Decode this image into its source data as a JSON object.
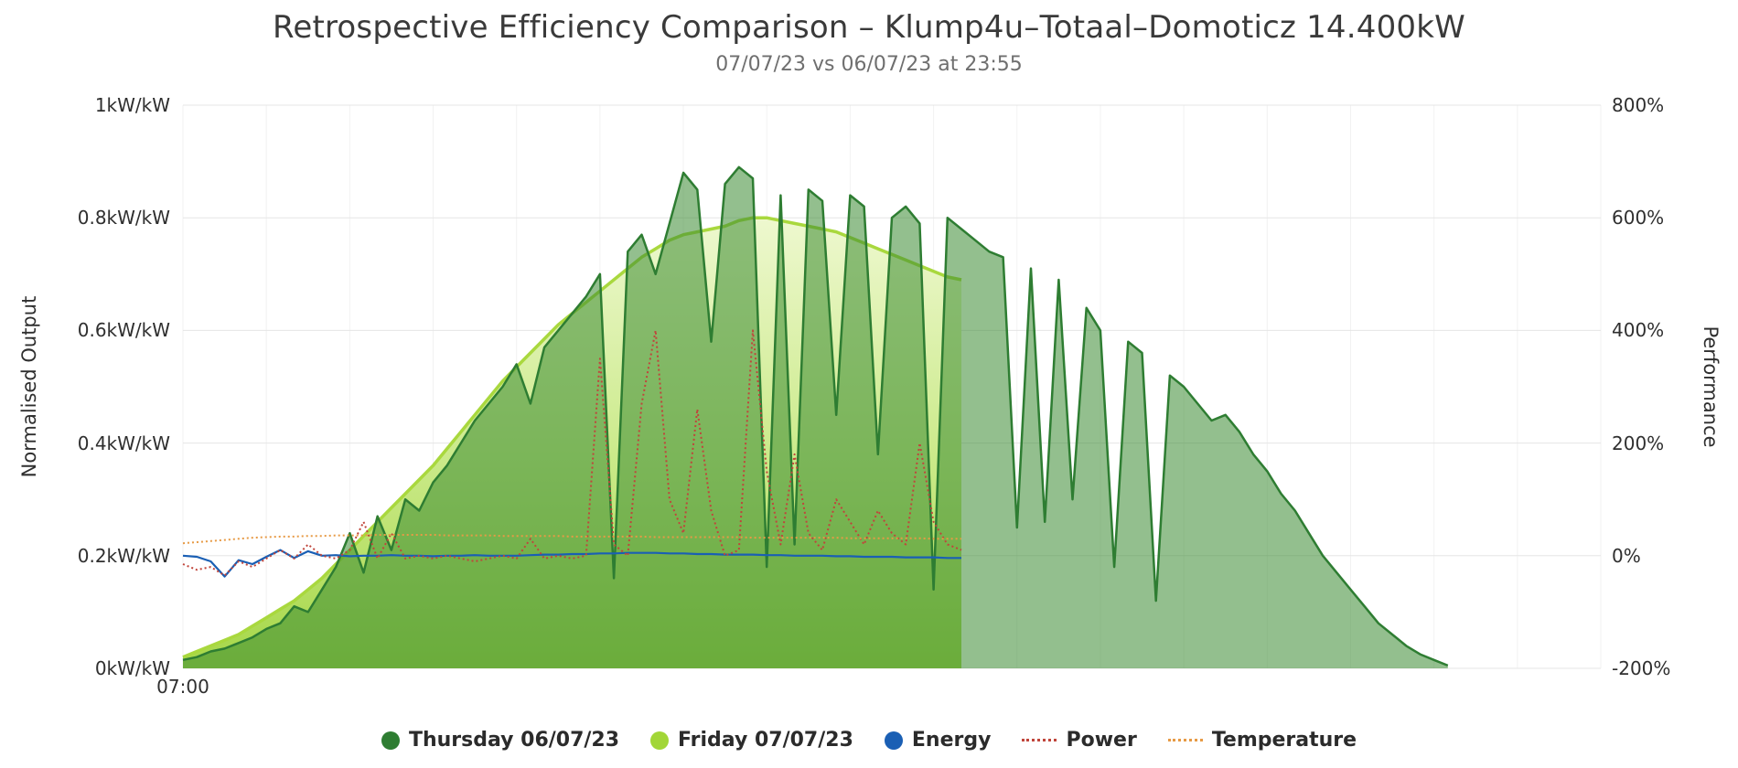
{
  "title": "Retrospective Efficiency Comparison – Klump4u–Totaal–Domoticz 14.400kW",
  "subtitle": "07/07/23 vs 06/07/23 at 23:55",
  "axes": {
    "left_label": "Normalised Output",
    "right_label": "Performance",
    "left_ticks": [
      "0kW/kW",
      "0.2kW/kW",
      "0.4kW/kW",
      "0.6kW/kW",
      "0.8kW/kW",
      "1kW/kW"
    ],
    "right_ticks": [
      "-200%",
      "0%",
      "200%",
      "400%",
      "600%",
      "800%"
    ],
    "x_ticks": [
      "07:00"
    ]
  },
  "legend": {
    "items": [
      {
        "label": "Thursday 06/07/23",
        "swatch": "circle",
        "color": "#2e7d32"
      },
      {
        "label": "Friday 07/07/23",
        "swatch": "circle",
        "color": "#a2d637"
      },
      {
        "label": "Energy",
        "swatch": "circle",
        "color": "#1a5fb4"
      },
      {
        "label": "Power",
        "swatch": "dotted-line",
        "color": "#c0453b"
      },
      {
        "label": "Temperature",
        "swatch": "dotted-line",
        "color": "#e79a45"
      }
    ]
  },
  "chart_data": {
    "type": "area",
    "title": "Retrospective Efficiency Comparison – Klump4u–Totaal–Domoticz 14.400kW",
    "subtitle": "07/07/23 vs 06/07/23 at 23:55",
    "x_range_minutes": [
      0,
      1020
    ],
    "x_start_time": "07:00",
    "left_axis": {
      "label": "Normalised Output",
      "unit": "kW/kW",
      "min": 0,
      "max": 1,
      "tick_step": 0.2
    },
    "right_axis": {
      "label": "Performance",
      "unit": "%",
      "min": -200,
      "max": 800,
      "tick_step": 200
    },
    "grid": {
      "horizontal": true,
      "vertical": true,
      "vertical_step_minutes": 60
    },
    "legend_position": "bottom",
    "series": [
      {
        "name": "Thursday 06/07/23",
        "type": "area",
        "color": "#2e7d32",
        "fill": "rgba(58,138,50,0.55)",
        "x_start_min": 0,
        "x_step_min": 10,
        "values": [
          0.015,
          0.02,
          0.03,
          0.035,
          0.045,
          0.055,
          0.07,
          0.08,
          0.11,
          0.1,
          0.14,
          0.18,
          0.24,
          0.17,
          0.27,
          0.21,
          0.3,
          0.28,
          0.33,
          0.36,
          0.4,
          0.44,
          0.47,
          0.5,
          0.54,
          0.47,
          0.57,
          0.6,
          0.63,
          0.66,
          0.7,
          0.16,
          0.74,
          0.77,
          0.7,
          0.79,
          0.88,
          0.85,
          0.58,
          0.86,
          0.89,
          0.87,
          0.18,
          0.84,
          0.22,
          0.85,
          0.83,
          0.45,
          0.84,
          0.82,
          0.38,
          0.8,
          0.82,
          0.79,
          0.14,
          0.8,
          0.78,
          0.76,
          0.74,
          0.73,
          0.25,
          0.71,
          0.26,
          0.69,
          0.3,
          0.64,
          0.6,
          0.18,
          0.58,
          0.56,
          0.12,
          0.52,
          0.5,
          0.47,
          0.44,
          0.45,
          0.42,
          0.38,
          0.35,
          0.31,
          0.28,
          0.24,
          0.2,
          0.17,
          0.14,
          0.11,
          0.08,
          0.06,
          0.04,
          0.025,
          0.015,
          0.005
        ]
      },
      {
        "name": "Friday 07/07/23",
        "type": "area",
        "color": "#a9d83e",
        "fill_gradient": [
          "#eef8cf",
          "#cdeb8e",
          "#a6d748"
        ],
        "x_start_min": 0,
        "x_step_min": 10,
        "values": [
          0.02,
          0.03,
          0.04,
          0.05,
          0.06,
          0.075,
          0.09,
          0.105,
          0.12,
          0.14,
          0.16,
          0.185,
          0.21,
          0.235,
          0.26,
          0.285,
          0.31,
          0.335,
          0.36,
          0.39,
          0.42,
          0.45,
          0.48,
          0.51,
          0.535,
          0.56,
          0.585,
          0.61,
          0.63,
          0.65,
          0.67,
          0.69,
          0.71,
          0.73,
          0.745,
          0.76,
          0.77,
          0.775,
          0.78,
          0.785,
          0.795,
          0.8,
          0.8,
          0.795,
          0.79,
          0.785,
          0.78,
          0.775,
          0.765,
          0.755,
          0.745,
          0.735,
          0.725,
          0.715,
          0.705,
          0.695,
          0.69
        ]
      },
      {
        "name": "Energy",
        "type": "line",
        "color": "#1a5fb4",
        "x_start_min": 0,
        "x_step_min": 10,
        "values": [
          0.2,
          0.198,
          0.19,
          0.163,
          0.192,
          0.185,
          0.198,
          0.21,
          0.196,
          0.208,
          0.2,
          0.201,
          0.199,
          0.2,
          0.2,
          0.201,
          0.2,
          0.2,
          0.199,
          0.2,
          0.2,
          0.201,
          0.2,
          0.2,
          0.2,
          0.201,
          0.202,
          0.202,
          0.203,
          0.203,
          0.204,
          0.204,
          0.205,
          0.205,
          0.205,
          0.204,
          0.204,
          0.203,
          0.203,
          0.202,
          0.202,
          0.202,
          0.201,
          0.201,
          0.2,
          0.2,
          0.2,
          0.199,
          0.199,
          0.198,
          0.198,
          0.198,
          0.197,
          0.197,
          0.197,
          0.196,
          0.196
        ]
      },
      {
        "name": "Power",
        "type": "line",
        "style": "dotted",
        "color": "#c0453b",
        "x_start_min": 0,
        "x_step_min": 10,
        "values": [
          0.185,
          0.175,
          0.18,
          0.165,
          0.19,
          0.18,
          0.195,
          0.21,
          0.195,
          0.22,
          0.2,
          0.195,
          0.21,
          0.26,
          0.195,
          0.24,
          0.195,
          0.2,
          0.195,
          0.2,
          0.195,
          0.19,
          0.195,
          0.2,
          0.195,
          0.23,
          0.195,
          0.2,
          0.195,
          0.2,
          0.55,
          0.22,
          0.2,
          0.47,
          0.6,
          0.3,
          0.24,
          0.46,
          0.28,
          0.2,
          0.21,
          0.6,
          0.35,
          0.22,
          0.38,
          0.24,
          0.21,
          0.3,
          0.26,
          0.22,
          0.28,
          0.24,
          0.22,
          0.4,
          0.26,
          0.22,
          0.21
        ]
      },
      {
        "name": "Temperature",
        "type": "line",
        "style": "dotted",
        "color": "#e79a45",
        "x_start_min": 0,
        "x_step_min": 10,
        "values": [
          0.222,
          0.224,
          0.226,
          0.228,
          0.23,
          0.232,
          0.233,
          0.234,
          0.234,
          0.235,
          0.235,
          0.236,
          0.236,
          0.236,
          0.237,
          0.237,
          0.237,
          0.237,
          0.237,
          0.236,
          0.236,
          0.236,
          0.236,
          0.235,
          0.235,
          0.235,
          0.235,
          0.235,
          0.234,
          0.234,
          0.234,
          0.234,
          0.234,
          0.234,
          0.233,
          0.233,
          0.233,
          0.233,
          0.233,
          0.233,
          0.233,
          0.232,
          0.232,
          0.232,
          0.232,
          0.232,
          0.232,
          0.232,
          0.231,
          0.231,
          0.231,
          0.231,
          0.231,
          0.231,
          0.23,
          0.23,
          0.23
        ]
      }
    ]
  }
}
